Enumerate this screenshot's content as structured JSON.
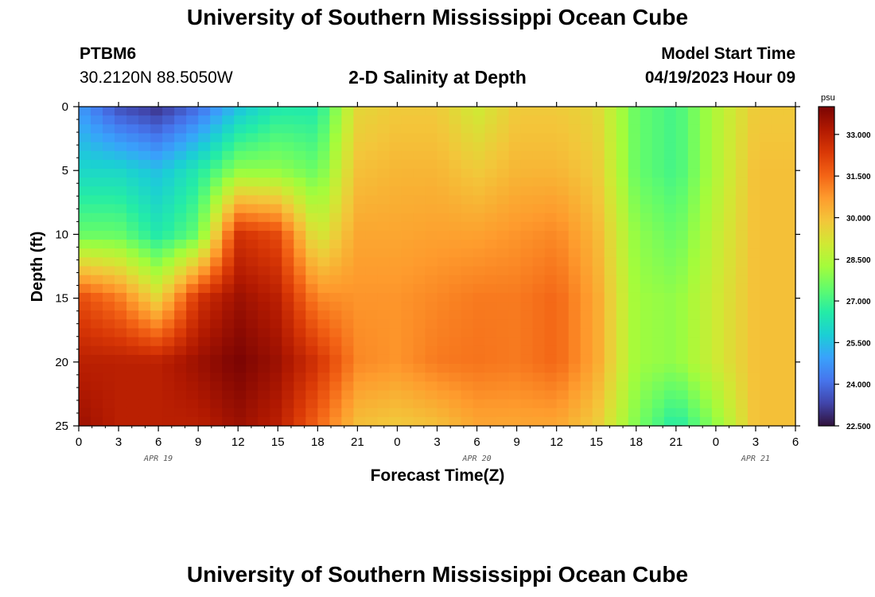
{
  "header": {
    "title": "University of Southern Mississippi Ocean Cube",
    "station": "PTBM6",
    "coords": "30.2120N  88.5050W",
    "subtitle": "2-D Salinity at Depth",
    "model_start_label": "Model Start Time",
    "model_start_value": "04/19/2023 Hour 09"
  },
  "footer": {
    "title": "University of Southern Mississippi Ocean Cube"
  },
  "chart_data": {
    "type": "heatmap",
    "title": "2-D Salinity at Depth",
    "xlabel": "Forecast Time(Z)",
    "ylabel": "Depth (ft)",
    "x_ticks": [
      "0",
      "3",
      "6",
      "9",
      "12",
      "15",
      "18",
      "21",
      "0",
      "3",
      "6",
      "9",
      "12",
      "15",
      "18",
      "21",
      "0",
      "3",
      "6"
    ],
    "x_range": [
      0,
      54
    ],
    "y_ticks": [
      "0",
      "5",
      "10",
      "15",
      "20",
      "25"
    ],
    "y_range": [
      0,
      25
    ],
    "date_labels": [
      {
        "label": "APR 19",
        "x": 6
      },
      {
        "label": "APR 20",
        "x": 30
      },
      {
        "label": "APR 21",
        "x": 51
      }
    ],
    "colorbar": {
      "unit": "psu",
      "ticks": [
        "33.000",
        "31.500",
        "30.000",
        "28.500",
        "27.000",
        "25.500",
        "24.000",
        "22.500"
      ],
      "range": [
        22.5,
        34.0
      ],
      "colors": [
        "#30123b",
        "#4145ab",
        "#4675ed",
        "#39a2fc",
        "#1bcfd4",
        "#24eca6",
        "#61fc6c",
        "#a4fc3b",
        "#d1e834",
        "#f3c63a",
        "#fe9b2d",
        "#f36315",
        "#d93806",
        "#b11901",
        "#7a0403"
      ]
    },
    "field_description_values": {
      "time_hours": [
        0,
        3,
        6,
        9,
        12,
        15,
        18,
        21,
        24,
        27,
        30,
        33,
        36,
        39,
        42,
        45,
        48,
        51,
        54
      ],
      "depth_ft": [
        0,
        5,
        10,
        15,
        20,
        25
      ],
      "salinity_psu": [
        [
          24.8,
          23.5,
          23.0,
          24.0,
          25.5,
          26.5,
          26.5,
          29.5,
          29.8,
          29.8,
          29.0,
          29.8,
          29.8,
          29.5,
          27.5,
          27.0,
          28.5,
          29.8,
          29.8
        ],
        [
          26.0,
          26.0,
          25.5,
          26.5,
          28.0,
          28.0,
          27.5,
          30.0,
          30.2,
          30.2,
          29.8,
          30.2,
          30.2,
          29.8,
          27.5,
          27.0,
          28.5,
          30.0,
          30.0
        ],
        [
          27.5,
          27.5,
          26.5,
          27.5,
          32.5,
          32.0,
          29.0,
          30.5,
          30.5,
          30.6,
          30.6,
          30.8,
          31.0,
          30.2,
          28.0,
          27.5,
          28.8,
          30.0,
          30.0
        ],
        [
          32.0,
          31.2,
          29.5,
          32.5,
          33.5,
          33.0,
          31.0,
          30.8,
          30.8,
          31.0,
          31.2,
          31.2,
          31.5,
          30.5,
          28.2,
          28.0,
          29.0,
          30.0,
          30.0
        ],
        [
          33.0,
          33.0,
          33.0,
          33.5,
          34.0,
          33.5,
          32.5,
          31.0,
          30.8,
          31.2,
          31.3,
          31.2,
          31.5,
          30.5,
          28.2,
          28.0,
          29.0,
          30.0,
          30.0
        ],
        [
          33.5,
          33.0,
          33.0,
          33.0,
          33.5,
          33.0,
          31.5,
          30.0,
          29.8,
          30.0,
          30.5,
          30.5,
          30.5,
          29.8,
          27.8,
          26.5,
          28.0,
          30.0,
          30.0
        ]
      ]
    }
  }
}
